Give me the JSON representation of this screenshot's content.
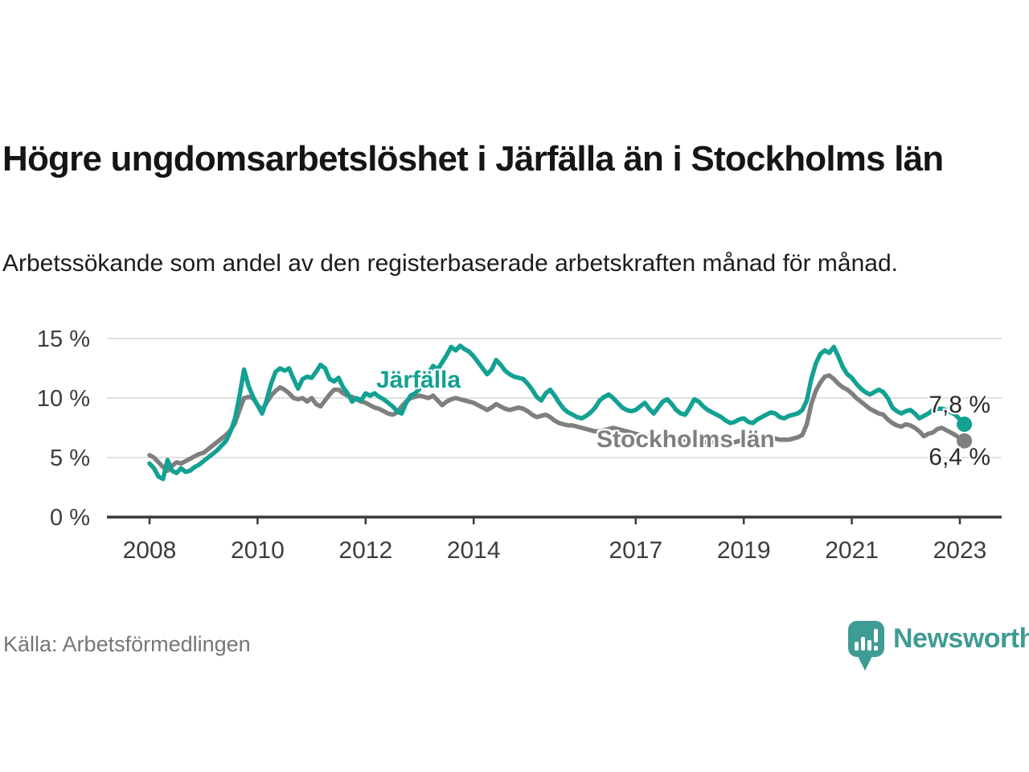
{
  "header": {
    "title": "Högre ungdomsarbetslöshet i Järfälla än i Stockholms län",
    "subtitle": "Arbetssökande som andel av den registerbaserade arbetskraften månad för månad."
  },
  "annotations": {
    "jarfalla_label": "Järfälla",
    "stockholm_label": "Stockholms län",
    "jarfalla_end_label": "7,8 %",
    "stockholm_end_label": "6,4 %"
  },
  "footer": {
    "source": "Källa: Arbetsförmedlingen",
    "brand_name": "Newsworthy",
    "brand_icon": "speech-bubble-bar-chart"
  },
  "colors": {
    "jarfalla": "#12a192",
    "stockholm": "#7f7f7f",
    "grid": "#d6d6d6",
    "axis": "#3a3a3a",
    "axis_text": "#3d3d3d",
    "title_text": "#151515",
    "source_text": "#767676",
    "brand": "#3e9c94"
  },
  "chart_data": {
    "type": "line",
    "title": "Högre ungdomsarbetslöshet i Järfälla än i Stockholms län",
    "subtitle": "Arbetssökande som andel av den registerbaserade arbetskraften månad för månad.",
    "unit": "%",
    "frequency": "monthly",
    "x_start": {
      "year": 2008,
      "month": 1
    },
    "x_end": {
      "year": 2023,
      "month": 2
    },
    "x_tick_years": [
      2008,
      2010,
      2012,
      2014,
      2017,
      2019,
      2021,
      2023
    ],
    "x_tick_labels": [
      "2008",
      "2010",
      "2012",
      "2014",
      "2017",
      "2019",
      "2021",
      "2023"
    ],
    "y_ticks": [
      0,
      5,
      10,
      15
    ],
    "y_tick_labels": [
      "0 %",
      "5 %",
      "10 %",
      "15 %"
    ],
    "ylim": [
      0,
      16.5
    ],
    "grid": true,
    "legend_position": "inline-labels",
    "series": [
      {
        "name": "Järfälla",
        "color": "#12a192",
        "end_value": 7.8,
        "end_label": "7,8 %",
        "values": [
          4.5,
          4.1,
          3.4,
          3.2,
          4.8,
          3.9,
          3.7,
          4.1,
          3.8,
          3.9,
          4.2,
          4.4,
          4.7,
          5.0,
          5.3,
          5.6,
          6.0,
          6.4,
          7.2,
          8.3,
          10.2,
          12.4,
          11.0,
          10.1,
          9.4,
          8.7,
          9.8,
          11.2,
          12.2,
          12.5,
          12.3,
          12.5,
          11.6,
          10.8,
          11.6,
          11.8,
          11.7,
          12.2,
          12.8,
          12.5,
          11.6,
          11.4,
          11.7,
          10.9,
          10.4,
          9.7,
          10.0,
          9.8,
          10.4,
          10.2,
          10.4,
          10.1,
          9.9,
          9.6,
          9.3,
          8.9,
          8.7,
          9.6,
          10.2,
          10.4,
          10.8,
          11.4,
          12.1,
          12.7,
          12.4,
          13.0,
          13.6,
          14.3,
          14.0,
          14.4,
          14.1,
          13.9,
          13.5,
          13.0,
          12.5,
          12.0,
          12.4,
          13.2,
          12.8,
          12.3,
          12.0,
          11.8,
          11.7,
          11.6,
          11.2,
          10.7,
          10.1,
          9.8,
          10.4,
          10.7,
          10.2,
          9.6,
          9.1,
          8.8,
          8.6,
          8.4,
          8.3,
          8.5,
          8.8,
          9.2,
          9.8,
          10.1,
          10.3,
          10.0,
          9.6,
          9.2,
          9.0,
          8.9,
          9.0,
          9.3,
          9.6,
          9.1,
          8.7,
          9.2,
          9.7,
          9.9,
          9.5,
          9.0,
          8.7,
          8.6,
          9.2,
          9.9,
          9.7,
          9.3,
          9.0,
          8.8,
          8.6,
          8.4,
          8.1,
          7.9,
          8.0,
          8.2,
          8.3,
          8.0,
          7.9,
          8.2,
          8.4,
          8.6,
          8.8,
          8.7,
          8.4,
          8.3,
          8.5,
          8.6,
          8.7,
          9.0,
          9.8,
          11.6,
          12.9,
          13.7,
          14.0,
          13.8,
          14.3,
          13.5,
          12.6,
          12.0,
          11.7,
          11.2,
          10.8,
          10.5,
          10.3,
          10.5,
          10.7,
          10.5,
          10.0,
          9.2,
          8.9,
          8.7,
          8.9,
          9.0,
          8.7,
          8.3,
          8.5,
          8.7,
          9.0,
          9.1,
          9.1,
          9.0,
          8.8,
          8.6,
          8.2,
          7.8
        ]
      },
      {
        "name": "Stockholms län",
        "color": "#7f7f7f",
        "end_value": 6.4,
        "end_label": "6,4 %",
        "values": [
          5.2,
          5.0,
          4.6,
          4.2,
          3.9,
          4.3,
          4.6,
          4.5,
          4.7,
          4.9,
          5.1,
          5.3,
          5.4,
          5.7,
          6.0,
          6.3,
          6.6,
          6.9,
          7.3,
          7.9,
          9.0,
          10.0,
          10.1,
          10.0,
          9.4,
          9.0,
          9.6,
          10.2,
          10.6,
          10.9,
          10.7,
          10.4,
          10.0,
          9.9,
          10.0,
          9.7,
          10.0,
          9.5,
          9.3,
          9.8,
          10.3,
          10.7,
          10.7,
          10.4,
          10.2,
          10.1,
          9.9,
          9.7,
          9.6,
          9.4,
          9.2,
          9.1,
          8.9,
          8.7,
          8.6,
          8.8,
          9.3,
          9.7,
          10.0,
          10.1,
          10.2,
          10.1,
          10.0,
          10.2,
          9.8,
          9.4,
          9.7,
          9.9,
          10.0,
          9.9,
          9.8,
          9.7,
          9.6,
          9.4,
          9.2,
          9.0,
          9.2,
          9.5,
          9.3,
          9.1,
          9.0,
          9.1,
          9.2,
          9.1,
          8.9,
          8.6,
          8.4,
          8.5,
          8.6,
          8.4,
          8.1,
          7.9,
          7.8,
          7.7,
          7.7,
          7.6,
          7.5,
          7.4,
          7.3,
          7.2,
          7.2,
          7.3,
          7.4,
          7.5,
          7.4,
          7.3,
          7.2,
          7.1,
          7.0,
          6.9,
          6.8,
          6.8,
          6.7,
          6.7,
          6.8,
          6.8,
          6.7,
          6.6,
          6.6,
          6.5,
          6.5,
          6.4,
          6.4,
          6.3,
          6.3,
          6.3,
          6.4,
          6.4,
          6.4,
          6.3,
          6.3,
          6.4,
          6.4,
          6.5,
          6.5,
          6.6,
          6.6,
          6.7,
          6.7,
          6.6,
          6.5,
          6.5,
          6.5,
          6.6,
          6.7,
          6.9,
          7.8,
          9.5,
          10.6,
          11.3,
          11.8,
          11.9,
          11.6,
          11.2,
          10.9,
          10.7,
          10.4,
          10.0,
          9.7,
          9.4,
          9.1,
          8.9,
          8.7,
          8.6,
          8.2,
          7.9,
          7.7,
          7.6,
          7.8,
          7.7,
          7.5,
          7.2,
          6.8,
          7.0,
          7.1,
          7.4,
          7.5,
          7.3,
          7.1,
          6.9,
          6.6,
          6.4
        ]
      }
    ]
  }
}
